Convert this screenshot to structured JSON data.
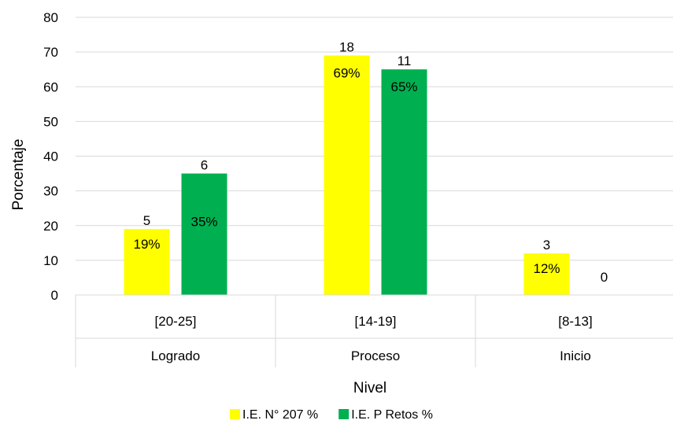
{
  "chart_data": {
    "type": "bar",
    "ylabel": "Porcentaje",
    "xlabel": "Nivel",
    "ylim": [
      0,
      80
    ],
    "y_ticks": [
      0,
      10,
      20,
      30,
      40,
      50,
      60,
      70,
      80
    ],
    "grid": true,
    "legend_position": "bottom",
    "categories": [
      {
        "range": "[20-25]",
        "level": "Logrado"
      },
      {
        "range": "[14-19]",
        "level": "Proceso"
      },
      {
        "range": "[8-13]",
        "level": "Inicio"
      }
    ],
    "series": [
      {
        "name": "I.E. N° 207  %",
        "color": "#FFFF00",
        "values": [
          19,
          69,
          12
        ],
        "count_labels": [
          "5",
          "18",
          "3"
        ],
        "percent_labels": [
          "19%",
          "69%",
          "12%"
        ]
      },
      {
        "name": "I.E. P Retos %",
        "color": "#00B050",
        "values": [
          35,
          65,
          0
        ],
        "count_labels": [
          "6",
          "11",
          "0"
        ],
        "percent_labels": [
          "35%",
          "65%",
          ""
        ]
      }
    ]
  }
}
